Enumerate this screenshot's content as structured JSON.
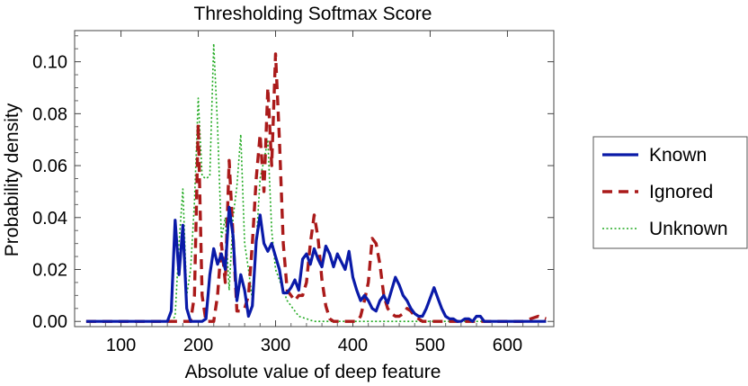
{
  "chart_data": {
    "type": "line",
    "title": "Thresholding Softmax Score",
    "xlabel": "Absolute value of deep feature",
    "ylabel": "Probability density",
    "xlim": [
      40,
      660
    ],
    "ylim": [
      -0.002,
      0.112
    ],
    "xticks": [
      100,
      200,
      300,
      400,
      500,
      600
    ],
    "xtick_labels": [
      "100",
      "200",
      "300",
      "400",
      "500",
      "600"
    ],
    "yticks": [
      0.0,
      0.02,
      0.04,
      0.06,
      0.08,
      0.1
    ],
    "ytick_labels": [
      "0.00",
      "0.02",
      "0.04",
      "0.06",
      "0.08",
      "0.10"
    ],
    "legend_position": "right",
    "series": [
      {
        "name": "Known",
        "color": "#0a1aa8",
        "style": "solid",
        "x": [
          55,
          100,
          150,
          160,
          165,
          170,
          175,
          180,
          185,
          190,
          195,
          200,
          205,
          210,
          215,
          220,
          225,
          230,
          235,
          240,
          245,
          250,
          255,
          260,
          265,
          270,
          275,
          280,
          285,
          290,
          295,
          300,
          305,
          310,
          315,
          320,
          325,
          330,
          335,
          340,
          345,
          350,
          355,
          360,
          365,
          370,
          375,
          380,
          385,
          390,
          395,
          400,
          405,
          410,
          415,
          420,
          425,
          430,
          435,
          440,
          445,
          450,
          455,
          460,
          465,
          470,
          475,
          480,
          485,
          490,
          495,
          500,
          505,
          510,
          515,
          520,
          525,
          530,
          535,
          540,
          545,
          550,
          555,
          560,
          565,
          570,
          575,
          580,
          585,
          590,
          600,
          610,
          620,
          630,
          640,
          650
        ],
        "y": [
          0,
          0,
          0,
          0,
          0.004,
          0.039,
          0.018,
          0.037,
          0.005,
          0,
          0,
          0,
          0,
          0.001,
          0.018,
          0.028,
          0.022,
          0.026,
          0.02,
          0.044,
          0.033,
          0.008,
          0.018,
          0.012,
          0.002,
          0.006,
          0.031,
          0.041,
          0.03,
          0.027,
          0.03,
          0.025,
          0.02,
          0.011,
          0.011,
          0.013,
          0.016,
          0.012,
          0.024,
          0.026,
          0.022,
          0.028,
          0.024,
          0.021,
          0.029,
          0.026,
          0.021,
          0.026,
          0.023,
          0.02,
          0.027,
          0.017,
          0.012,
          0.008,
          0.01,
          0.008,
          0.005,
          0.004,
          0.008,
          0.01,
          0.007,
          0.012,
          0.017,
          0.014,
          0.01,
          0.008,
          0.005,
          0.003,
          0.002,
          0.002,
          0.005,
          0.009,
          0.013,
          0.009,
          0.005,
          0.002,
          0.001,
          0.001,
          0,
          0,
          0.001,
          0.001,
          0,
          0.002,
          0.002,
          0,
          0,
          0,
          0,
          0,
          0,
          0,
          0,
          0,
          0,
          0
        ]
      },
      {
        "name": "Ignored",
        "color": "#aa1a1a",
        "style": "dashed",
        "x": [
          55,
          100,
          150,
          180,
          185,
          190,
          195,
          200,
          205,
          210,
          215,
          220,
          225,
          230,
          235,
          240,
          245,
          250,
          255,
          260,
          265,
          270,
          275,
          280,
          285,
          290,
          295,
          300,
          305,
          310,
          315,
          320,
          325,
          330,
          335,
          340,
          345,
          350,
          355,
          360,
          365,
          370,
          375,
          380,
          385,
          390,
          395,
          400,
          405,
          410,
          415,
          420,
          425,
          430,
          435,
          440,
          445,
          450,
          455,
          460,
          465,
          470,
          475,
          480,
          485,
          490,
          500,
          510,
          520,
          530,
          540,
          550,
          560,
          570,
          580,
          590,
          600,
          610,
          620,
          630,
          640,
          650
        ],
        "y": [
          0,
          0,
          0,
          0,
          0,
          0,
          0.01,
          0.076,
          0.01,
          0,
          0,
          0,
          0.01,
          0.03,
          0.015,
          0.062,
          0.033,
          0.004,
          0.004,
          0.005,
          0.01,
          0.03,
          0.055,
          0.072,
          0.05,
          0.09,
          0.06,
          0.103,
          0.07,
          0.03,
          0.012,
          0.01,
          0.008,
          0.01,
          0.01,
          0.015,
          0.03,
          0.041,
          0.032,
          0.016,
          0.006,
          0.001,
          0,
          0,
          0,
          0,
          0,
          0,
          0,
          0.002,
          0.008,
          0.015,
          0.032,
          0.03,
          0.022,
          0.01,
          0.005,
          0.003,
          0.002,
          0.002,
          0.003,
          0.005,
          0.004,
          0.002,
          0.001,
          0,
          0,
          0,
          0,
          0,
          0,
          0,
          0,
          0,
          0,
          0,
          0,
          0,
          0,
          0.001,
          0.002,
          0.001
        ]
      },
      {
        "name": "Unknown",
        "color": "#22aa22",
        "style": "dotted",
        "x": [
          55,
          100,
          150,
          160,
          165,
          170,
          175,
          180,
          185,
          190,
          195,
          200,
          205,
          210,
          215,
          220,
          225,
          230,
          235,
          240,
          245,
          250,
          255,
          260,
          265,
          270,
          275,
          280,
          285,
          290,
          295,
          300,
          305,
          310,
          315,
          320,
          325,
          330,
          340,
          350,
          360,
          380,
          400,
          450,
          500,
          550,
          600,
          650
        ],
        "y": [
          0,
          0,
          0,
          0,
          0,
          0.002,
          0.03,
          0.051,
          0.01,
          0.02,
          0.046,
          0.086,
          0.056,
          0.055,
          0.056,
          0.107,
          0.075,
          0.032,
          0.04,
          0.012,
          0.04,
          0.052,
          0.072,
          0.03,
          0.02,
          0.008,
          0.03,
          0.055,
          0.062,
          0.07,
          0.035,
          0.02,
          0.016,
          0.012,
          0.008,
          0.006,
          0.004,
          0.002,
          0.001,
          0,
          0,
          0,
          0,
          0,
          0,
          0,
          0,
          0
        ]
      }
    ]
  }
}
